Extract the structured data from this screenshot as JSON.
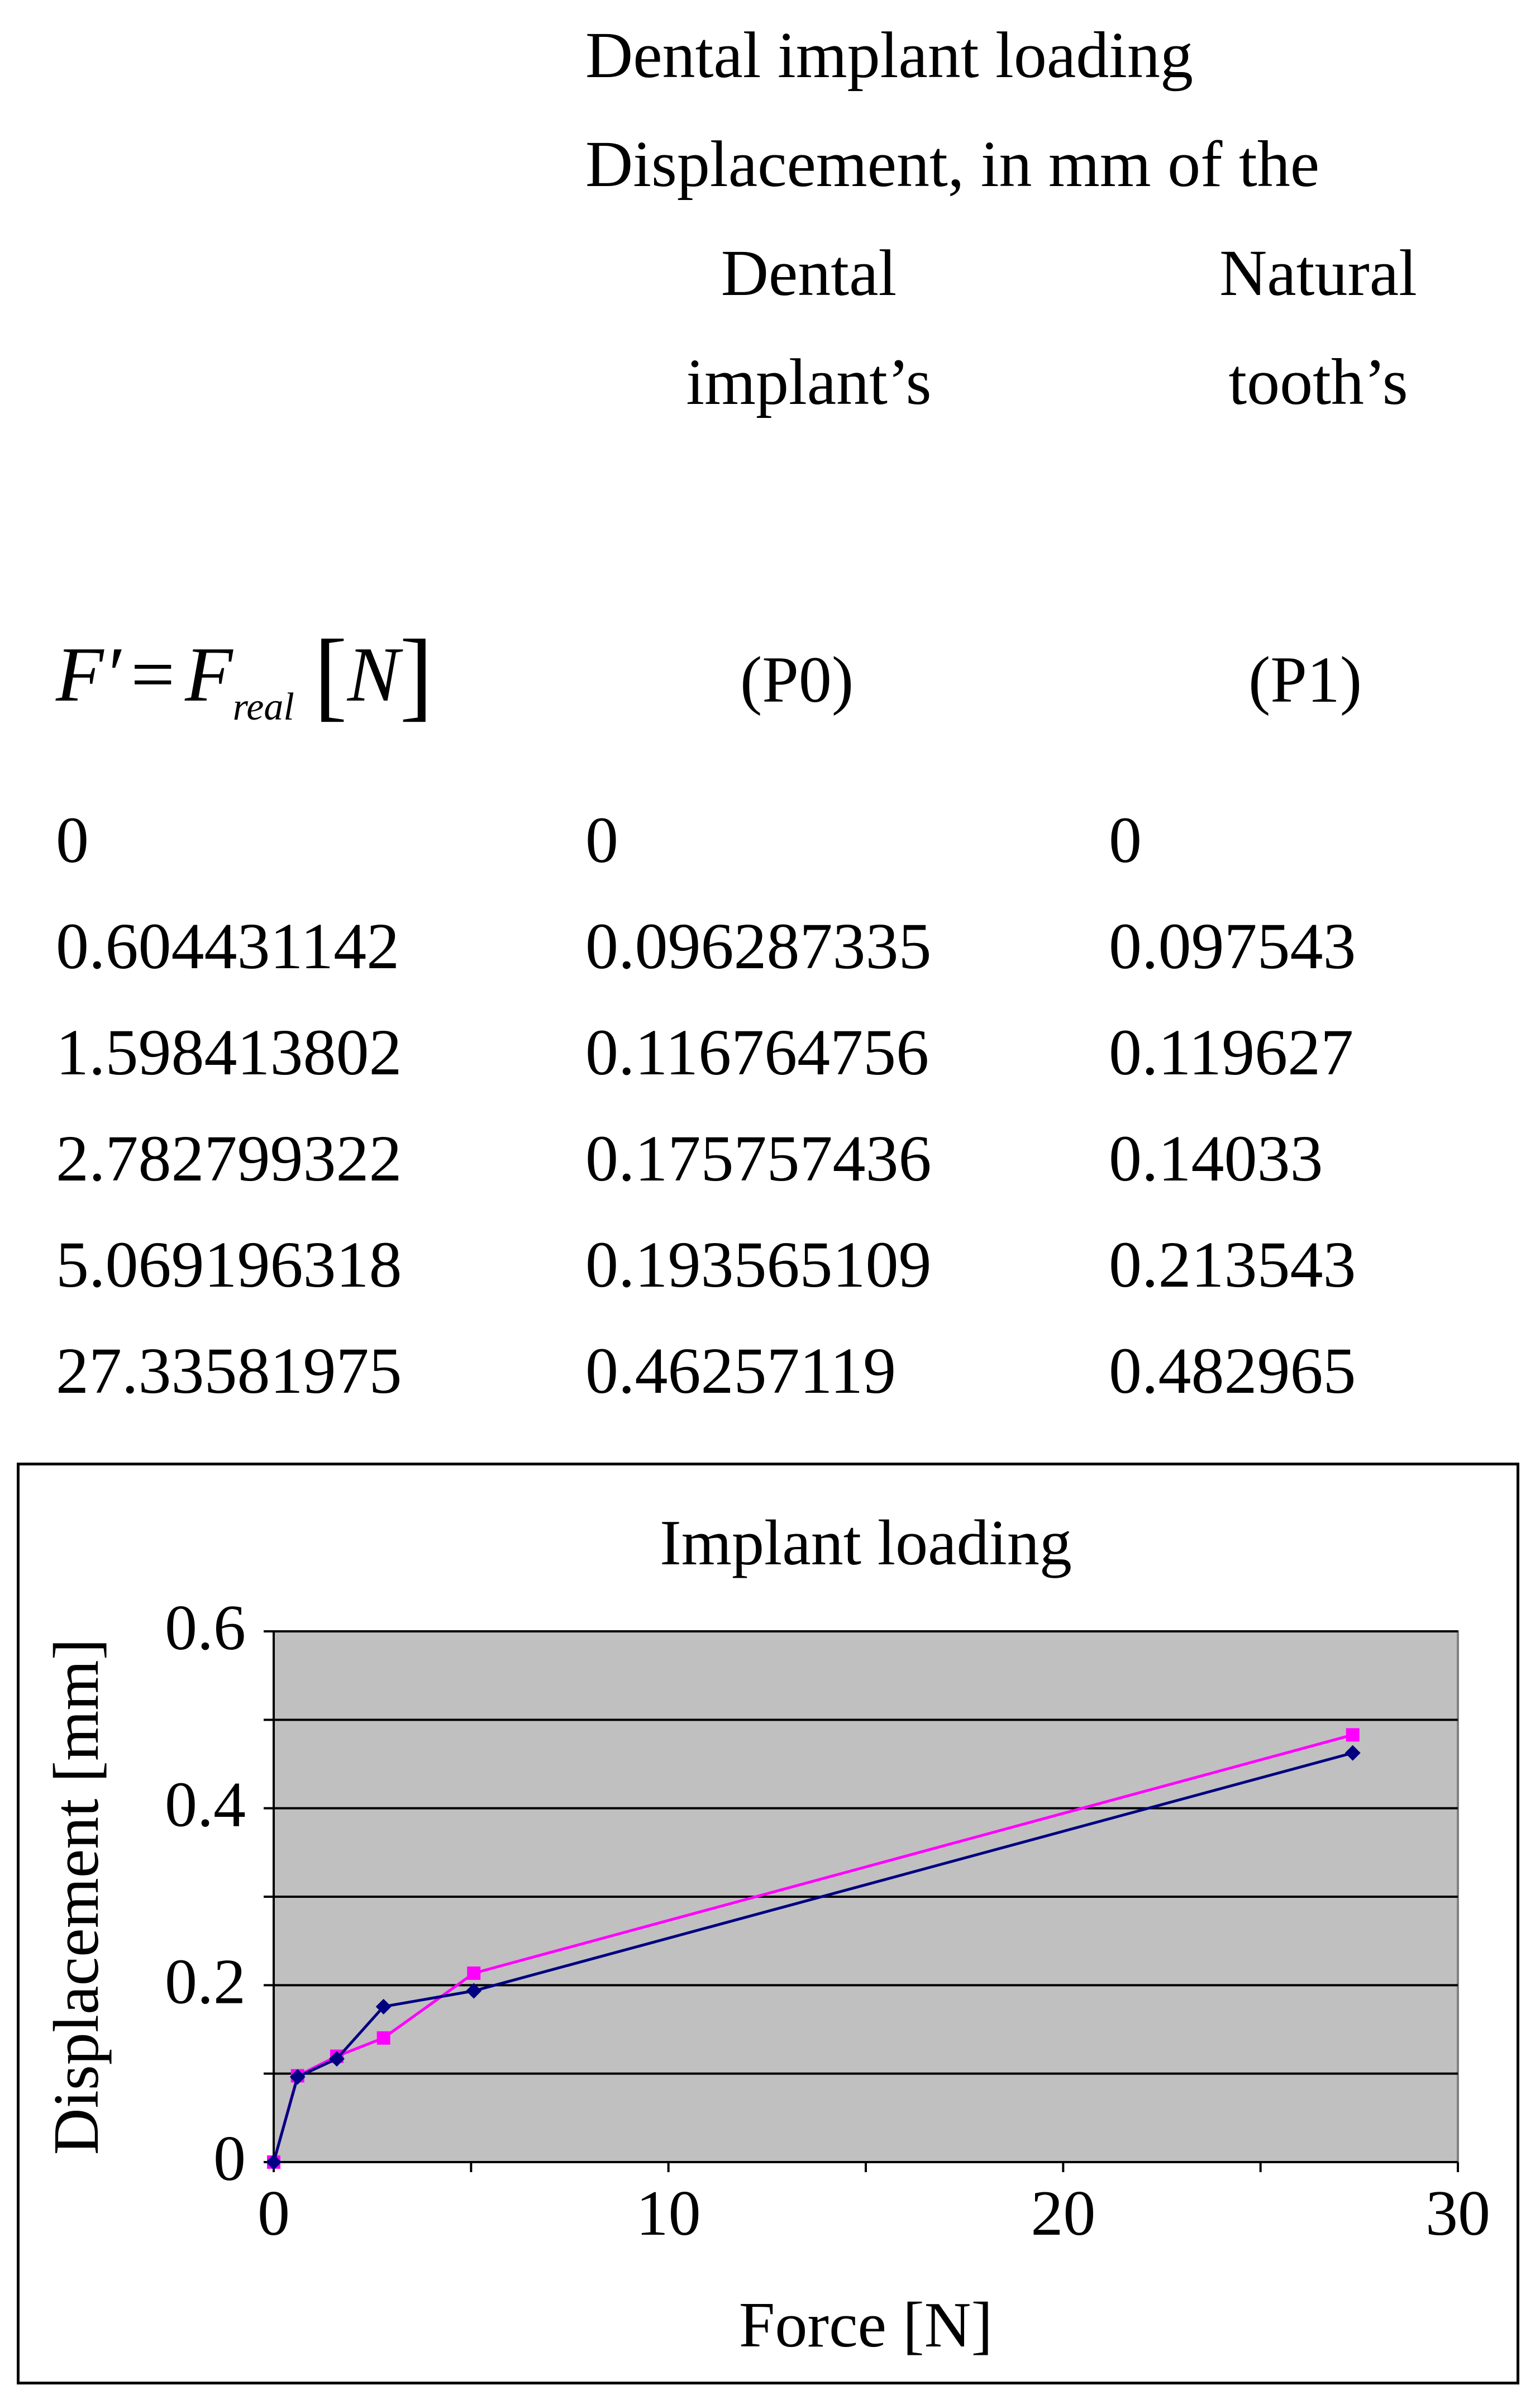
{
  "header": {
    "line1": "Dental implant loading",
    "line2": "Displacement, in mm of the",
    "col_implant_line1": "Dental",
    "col_implant_line2": "implant’s",
    "col_tooth_line1": "Natural",
    "col_tooth_line2": "tooth’s"
  },
  "formula": {
    "lhs": "F′",
    "eq": "=",
    "rhs": "F",
    "rhs_sub": "real",
    "unit_open": "[",
    "unit": "N",
    "unit_close": "]"
  },
  "column_codes": {
    "implant": "(P0)",
    "tooth": "(P1)"
  },
  "table": {
    "rows": [
      [
        "0",
        "0",
        "0"
      ],
      [
        "0.604431142",
        "0.096287335",
        "0.097543"
      ],
      [
        "1.598413802",
        "0.116764756",
        "0.119627"
      ],
      [
        "2.782799322",
        "0.175757436",
        "0.14033"
      ],
      [
        "5.069196318",
        "0.193565109",
        "0.213543"
      ],
      [
        "27.33581975",
        "0.46257119",
        "0.482965"
      ]
    ]
  },
  "chart_data": {
    "type": "scatter",
    "title": "Implant loading",
    "xlabel": "Force [N]",
    "ylabel": "Displacement [mm]",
    "xlim": [
      0,
      30
    ],
    "ylim": [
      0,
      0.6
    ],
    "xticks": [
      "0",
      "10",
      "20",
      "30"
    ],
    "yticks": [
      "0",
      "0.2",
      "0.4",
      "0.6"
    ],
    "grid": true,
    "plot_background": "#c0c0c0",
    "x": [
      0,
      0.604431142,
      1.598413802,
      2.782799322,
      5.069196318,
      27.33581975
    ],
    "series": [
      {
        "color": "#000080",
        "values": [
          0,
          0.096287335,
          0.116764756,
          0.175757436,
          0.193565109,
          0.46257119
        ]
      },
      {
        "color": "#ff00ff",
        "values": [
          0,
          0.097543,
          0.119627,
          0.14033,
          0.213543,
          0.482965
        ]
      }
    ]
  }
}
